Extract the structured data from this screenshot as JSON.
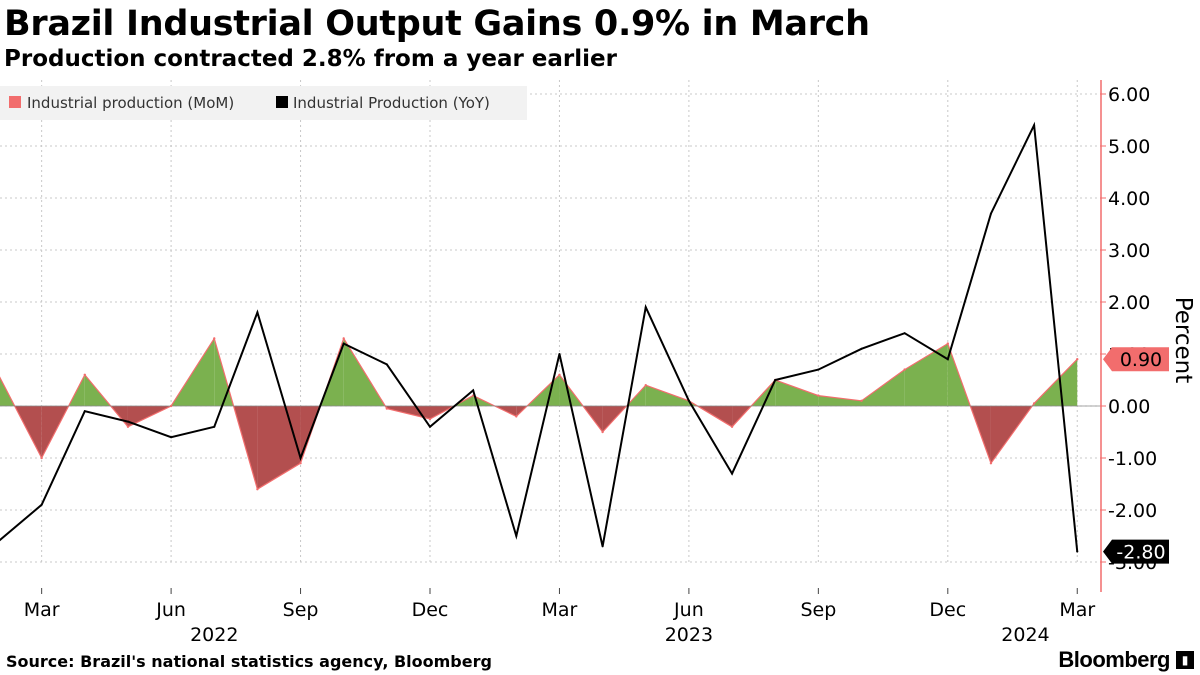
{
  "title": "Brazil Industrial Output Gains 0.9% in March",
  "subtitle": "Production contracted 2.8% from a year earlier",
  "source": "Source: Brazil's national statistics agency, Bloomberg",
  "brand": "Bloomberg",
  "chart_data": {
    "type": "area+line",
    "ylabel": "Percent",
    "ylim": [
      -3.3,
      6.3
    ],
    "yticks": [
      "6.00",
      "5.00",
      "4.00",
      "3.00",
      "2.00",
      "1.00",
      "0.00",
      "-1.00",
      "-2.00",
      "-3.00"
    ],
    "ytick_values": [
      6,
      5,
      4,
      3,
      2,
      1,
      0,
      -1,
      -2,
      -3
    ],
    "xtick_labels": [
      "Mar",
      "Jun",
      "Sep",
      "Dec",
      "Mar",
      "Jun",
      "Sep",
      "Dec",
      "Mar"
    ],
    "xtick_indices": [
      1,
      4,
      7,
      10,
      13,
      16,
      19,
      22,
      25
    ],
    "year_labels": [
      {
        "label": "2022",
        "index": 5
      },
      {
        "label": "2023",
        "index": 16
      },
      {
        "label": "2024",
        "index": 23.8
      }
    ],
    "months": [
      "Feb 2022",
      "Mar 2022",
      "Apr 2022",
      "May 2022",
      "Jun 2022",
      "Jul 2022",
      "Aug 2022",
      "Sep 2022",
      "Oct 2022",
      "Nov 2022",
      "Dec 2022",
      "Jan 2023",
      "Feb 2023",
      "Mar 2023",
      "Apr 2023",
      "May 2023",
      "Jun 2023",
      "Jul 2023",
      "Aug 2023",
      "Sep 2023",
      "Oct 2023",
      "Nov 2023",
      "Dec 2023",
      "Jan 2024",
      "Feb 2024",
      "Mar 2024"
    ],
    "series": [
      {
        "name": "Industrial production (MoM)",
        "type": "area",
        "color_pos": "#7bb14f",
        "color_neg": "#b34f4f",
        "edge_color": "#f26d6d",
        "values": [
          0.6,
          -1.0,
          0.6,
          -0.4,
          0.0,
          1.3,
          -1.6,
          -1.1,
          1.3,
          -0.05,
          -0.25,
          0.2,
          -0.2,
          0.6,
          -0.5,
          0.4,
          0.1,
          -0.4,
          0.5,
          0.2,
          0.1,
          0.7,
          1.2,
          -1.1,
          0.05,
          0.9
        ],
        "last_label": "0.90",
        "legend_color": "#f26d6d"
      },
      {
        "name": "Industrial Production (YoY)",
        "type": "line",
        "color": "#000000",
        "values": [
          -2.6,
          -1.9,
          -0.1,
          -0.3,
          -0.6,
          -0.4,
          1.8,
          -1.0,
          1.2,
          0.8,
          -0.4,
          0.3,
          -2.5,
          1.0,
          -2.7,
          1.9,
          0.1,
          -1.3,
          0.5,
          0.7,
          1.1,
          1.4,
          0.9,
          3.7,
          5.4,
          -2.8
        ],
        "last_label": "-2.80",
        "legend_color": "#000000"
      }
    ]
  }
}
